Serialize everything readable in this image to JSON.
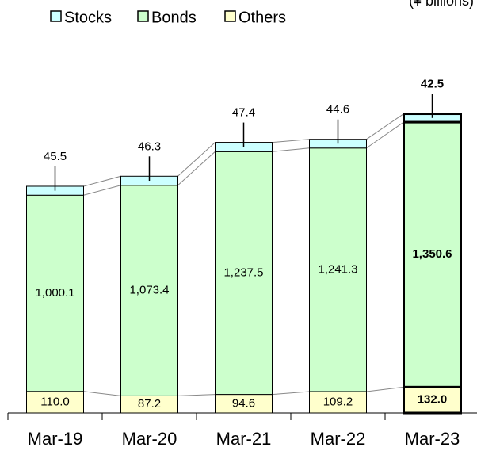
{
  "chart_data": {
    "type": "stacked_bar",
    "unit_label": "(¥ billions)",
    "categories": [
      "Mar-19",
      "Mar-20",
      "Mar-21",
      "Mar-22",
      "Mar-23"
    ],
    "highlight_category": "Mar-23",
    "series": [
      {
        "name": "Others",
        "color": "#ffffcc",
        "values": [
          110.0,
          87.2,
          94.6,
          109.2,
          132.0
        ],
        "value_labels": [
          "110.0",
          "87.2",
          "94.6",
          "109.2",
          "132.0"
        ]
      },
      {
        "name": "Bonds",
        "color": "#ccffcc",
        "values": [
          1000.1,
          1073.4,
          1237.5,
          1241.3,
          1350.6
        ],
        "value_labels": [
          "1,000.1",
          "1,073.4",
          "1,237.5",
          "1,241.3",
          "1,350.6"
        ]
      },
      {
        "name": "Stocks",
        "color": "#ccffff",
        "values": [
          45.5,
          46.3,
          47.4,
          44.6,
          42.5
        ],
        "value_labels": [
          "45.5",
          "46.3",
          "47.4",
          "44.6",
          "42.5"
        ]
      }
    ],
    "legend_order": [
      2,
      1,
      0
    ]
  }
}
